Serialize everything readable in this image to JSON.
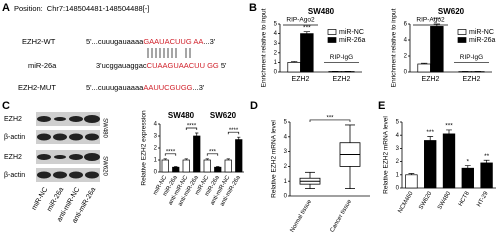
{
  "panel_labels": [
    "A",
    "B",
    "C",
    "D",
    "E"
  ],
  "sequence": {
    "position_label": "Position:",
    "position": "Chr7:148504481-148504488[-]",
    "rows": [
      {
        "name": "EZH2-WT",
        "prefix": "5'...cuuugauaaaa",
        "site": "GAAUACUUG AA",
        "suffix": "...3'"
      },
      {
        "name": "miR-26a",
        "prefix": "3'ucggauaggac",
        "site": "CUAAGUAACUU GG",
        "suffix": " 5'"
      },
      {
        "name": "EZH2-MUT",
        "prefix": "5'...cuuugauaaaa",
        "site": "AAUUCGUGG",
        "suffix": "...3'"
      }
    ]
  },
  "blot": {
    "rows": [
      "EZH2",
      "β-actin",
      "EZH2",
      "β-actin"
    ],
    "cell_lines": [
      "SW480",
      "SW620"
    ],
    "lanes": [
      "miR-NC",
      "miR-26a",
      "anti-miR-NC",
      "anti-miR-26a"
    ]
  },
  "chart_data": [
    {
      "type": "bar",
      "title": "SW480",
      "ylabel": "Enrichment relative to input",
      "categories": [
        "EZH2",
        "EZH2"
      ],
      "groups": [
        "RIP-Ago2",
        "RIP-IgG"
      ],
      "series": [
        {
          "name": "miR-NC",
          "color": "#ffffff",
          "values": [
            1.0,
            0.05
          ],
          "errors": [
            0.1,
            0.02
          ]
        },
        {
          "name": "miR-26a",
          "color": "#000000",
          "values": [
            4.0,
            0.05
          ],
          "errors": [
            0.2,
            0.02
          ]
        }
      ],
      "significance": [
        "***",
        null
      ],
      "ylim": [
        0,
        5
      ],
      "yticks": [
        0,
        1,
        2,
        3,
        4,
        5
      ],
      "legend": "upper right"
    },
    {
      "type": "bar",
      "title": "SW620",
      "ylabel": "Enrichment relative to input",
      "categories": [
        "EZH2",
        "EZH2"
      ],
      "groups": [
        "RIP-Ago2",
        "RIP-IgG"
      ],
      "series": [
        {
          "name": "miR-NC",
          "color": "#ffffff",
          "values": [
            1.0,
            0.05
          ],
          "errors": [
            0.1,
            0.02
          ]
        },
        {
          "name": "miR-26a",
          "color": "#000000",
          "values": [
            5.7,
            0.05
          ],
          "errors": [
            0.3,
            0.02
          ]
        }
      ],
      "significance": [
        "***",
        null
      ],
      "ylim": [
        0,
        6
      ],
      "yticks": [
        0,
        2,
        4,
        6
      ],
      "legend": "upper right"
    },
    {
      "type": "bar",
      "ylabel": "Relative EZH2 expression",
      "categories": [
        "miR-NC",
        "miR-26a",
        "anti-miR-NC",
        "anti-miR-26a",
        "miR-NC",
        "miR-26a",
        "anti-miR-NC",
        "anti-miR-26a"
      ],
      "groups": [
        "SW480",
        "SW620"
      ],
      "series": [
        {
          "values": [
            1.0,
            0.4,
            1.0,
            3.0,
            1.0,
            0.4,
            1.0,
            2.7
          ],
          "errors": [
            0.1,
            0.05,
            0.1,
            0.25,
            0.1,
            0.05,
            0.1,
            0.2
          ],
          "colors": [
            "#ffffff",
            "#000000",
            "#ffffff",
            "#000000",
            "#ffffff",
            "#000000",
            "#ffffff",
            "#000000"
          ]
        }
      ],
      "comparisons": [
        {
          "pair": [
            0,
            1
          ],
          "label": "****"
        },
        {
          "pair": [
            2,
            3
          ],
          "label": "****"
        },
        {
          "pair": [
            4,
            5
          ],
          "label": "***"
        },
        {
          "pair": [
            6,
            7
          ],
          "label": "****"
        }
      ],
      "ylim": [
        0,
        4
      ],
      "yticks": [
        0,
        1,
        2,
        3,
        4
      ]
    },
    {
      "type": "box",
      "ylabel": "Relative EZH2 mRNA level",
      "categories": [
        "Normal tissue",
        "Cancer tissue"
      ],
      "stats": [
        {
          "min": 0.5,
          "q1": 0.8,
          "median": 1.0,
          "q3": 1.2,
          "max": 1.6
        },
        {
          "min": 0.5,
          "q1": 2.0,
          "median": 2.8,
          "q3": 3.6,
          "max": 4.8
        }
      ],
      "comparisons": [
        {
          "pair": [
            0,
            1
          ],
          "label": "***"
        }
      ],
      "ylim": [
        0,
        5
      ],
      "yticks": [
        0,
        1,
        2,
        3,
        4,
        5
      ]
    },
    {
      "type": "bar",
      "ylabel": "Relative EZH2 mRNA level",
      "categories": [
        "NCM460",
        "SW620",
        "SW480",
        "HCT8",
        "HT-29"
      ],
      "series": [
        {
          "values": [
            1.0,
            3.6,
            4.1,
            1.5,
            1.9
          ],
          "errors": [
            0.1,
            0.3,
            0.3,
            0.2,
            0.2
          ],
          "colors": [
            "#ffffff",
            "#000000",
            "#000000",
            "#000000",
            "#000000"
          ]
        }
      ],
      "significance": [
        null,
        "***",
        "***",
        "*",
        "**"
      ],
      "ylim": [
        0,
        5
      ],
      "yticks": [
        0,
        1,
        2,
        3,
        4,
        5
      ]
    }
  ]
}
